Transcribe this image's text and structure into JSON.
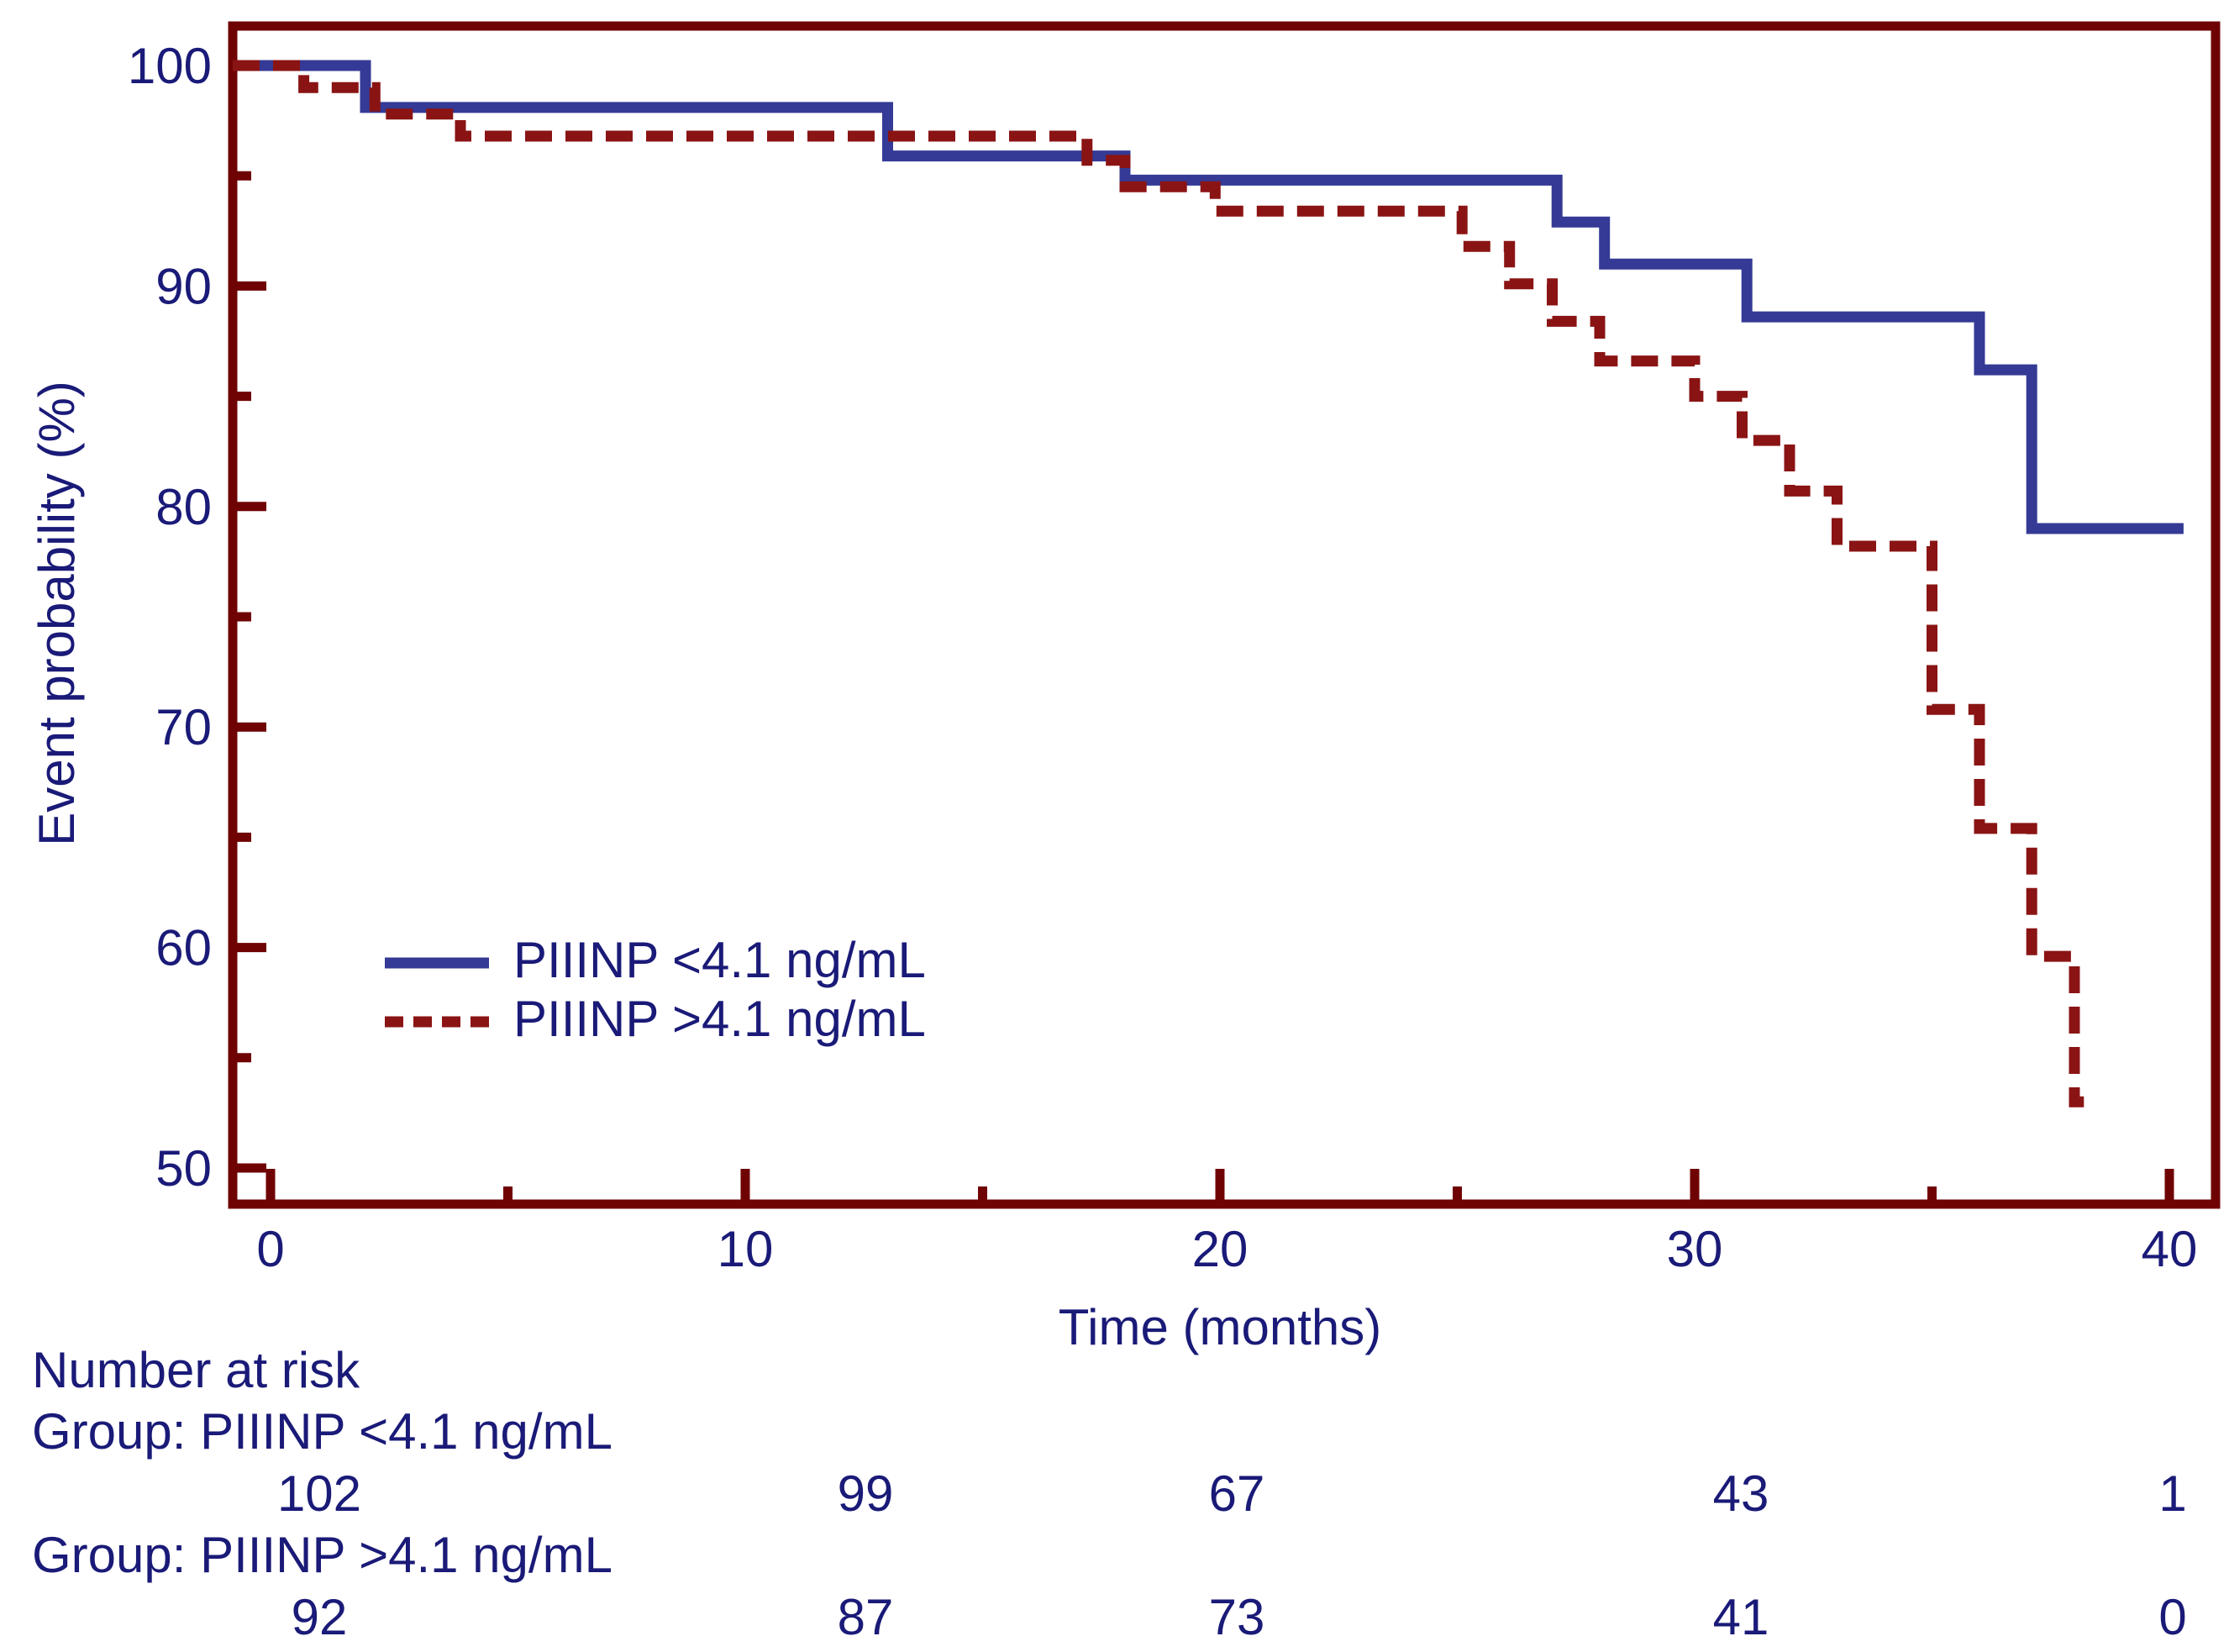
{
  "chart_data": {
    "type": "line",
    "subtype": "kaplan-meier-step",
    "title": "",
    "xlabel": "Time (months)",
    "ylabel": "Event probability (%)",
    "xlim": [
      0,
      40
    ],
    "ylim": [
      50,
      100
    ],
    "x_ticks": [
      0,
      10,
      20,
      30,
      40
    ],
    "x_minor_ticks": [
      5,
      15,
      25,
      35
    ],
    "y_ticks": [
      100,
      90,
      80,
      70,
      60,
      50
    ],
    "y_minor_ticks": [
      95,
      85,
      75,
      65,
      55
    ],
    "grid": false,
    "legend_position": "inside-left-middle",
    "series": [
      {
        "name": "PIIINP <4.1 ng/mL",
        "color": "#343a95",
        "line_style": "solid",
        "steps": [
          [
            0,
            100
          ],
          [
            2,
            98.1
          ],
          [
            13,
            95.9
          ],
          [
            18,
            94.8
          ],
          [
            27.1,
            92.9
          ],
          [
            28.1,
            91.0
          ],
          [
            31.1,
            88.6
          ],
          [
            36,
            86.2
          ],
          [
            37.1,
            79.0
          ],
          [
            40.3,
            79.0
          ]
        ]
      },
      {
        "name": "PIIINP >4.1 ng/mL",
        "color": "#8a1414",
        "line_style": "dashed",
        "steps": [
          [
            0,
            100
          ],
          [
            0.7,
            99.0
          ],
          [
            2.2,
            97.8
          ],
          [
            4,
            96.8
          ],
          [
            17.2,
            95.7
          ],
          [
            18,
            94.5
          ],
          [
            19.9,
            93.4
          ],
          [
            25.1,
            91.8
          ],
          [
            26.1,
            90.1
          ],
          [
            27,
            88.4
          ],
          [
            28,
            86.6
          ],
          [
            30,
            85.0
          ],
          [
            31,
            83.0
          ],
          [
            32,
            80.7
          ],
          [
            33,
            78.2
          ],
          [
            35,
            70.8
          ],
          [
            36,
            65.4
          ],
          [
            37.1,
            59.6
          ],
          [
            38,
            53.0
          ],
          [
            38.2,
            53.0
          ]
        ]
      }
    ],
    "at_risk": {
      "title": "Number at risk",
      "times": [
        0,
        10,
        20,
        30,
        40
      ],
      "groups": [
        {
          "label": "Group: PIIINP <4.1 ng/mL",
          "counts": [
            102,
            99,
            67,
            43,
            1
          ]
        },
        {
          "label": "Group: PIIINP >4.1 ng/mL",
          "counts": [
            92,
            87,
            73,
            41,
            0
          ]
        }
      ]
    },
    "colors": {
      "axis": "#6f0303",
      "text": "#1a1a78"
    }
  }
}
